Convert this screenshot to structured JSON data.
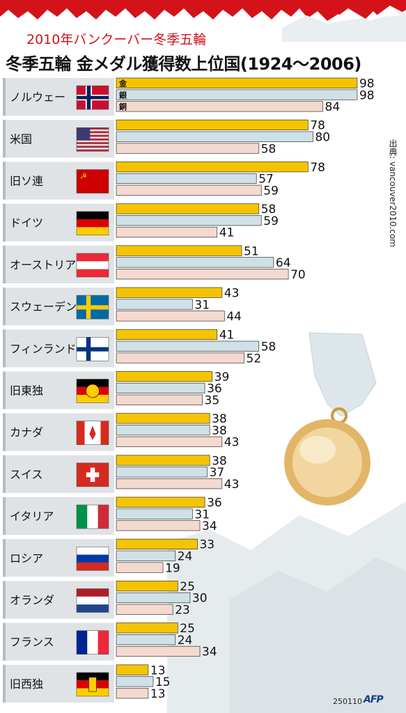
{
  "header": {
    "subtitle": "2010年バンクーバー冬季五輪",
    "title": "冬季五輪 金メダル獲得数上位国(1924～2006)"
  },
  "source": "出典: vancouver2010.com",
  "footer": {
    "code": "250110",
    "logo": "AFP"
  },
  "colors": {
    "gold": "#f5c400",
    "silver": "#cfe1e6",
    "bronze": "#f4d9cf",
    "red": "#d4121a",
    "row_band": "#dfe3e6"
  },
  "chart_data": {
    "type": "bar",
    "orientation": "horizontal",
    "series_labels": [
      "金",
      "銀",
      "銅"
    ],
    "categories": [
      "ノルウェー",
      "米国",
      "旧ソ連",
      "ドイツ",
      "オーストリア",
      "スウェーデン",
      "フィンランド",
      "旧東独",
      "カナダ",
      "スイス",
      "イタリア",
      "ロシア",
      "オランダ",
      "フランス",
      "旧西独"
    ],
    "flag_icons": [
      "norway-flag-icon",
      "usa-flag-icon",
      "ussr-flag-icon",
      "germany-flag-icon",
      "austria-flag-icon",
      "sweden-flag-icon",
      "finland-flag-icon",
      "east-germany-flag-icon",
      "canada-flag-icon",
      "switzerland-flag-icon",
      "italy-flag-icon",
      "russia-flag-icon",
      "netherlands-flag-icon",
      "france-flag-icon",
      "west-germany-flag-icon"
    ],
    "series": [
      {
        "values": [
          98,
          78,
          78,
          58,
          51,
          43,
          41,
          39,
          38,
          38,
          36,
          33,
          25,
          25,
          13
        ]
      },
      {
        "values": [
          98,
          80,
          57,
          59,
          64,
          31,
          58,
          36,
          38,
          37,
          31,
          24,
          30,
          24,
          15
        ]
      },
      {
        "values": [
          84,
          58,
          59,
          41,
          70,
          44,
          52,
          35,
          43,
          43,
          34,
          19,
          23,
          34,
          13
        ]
      }
    ]
  }
}
